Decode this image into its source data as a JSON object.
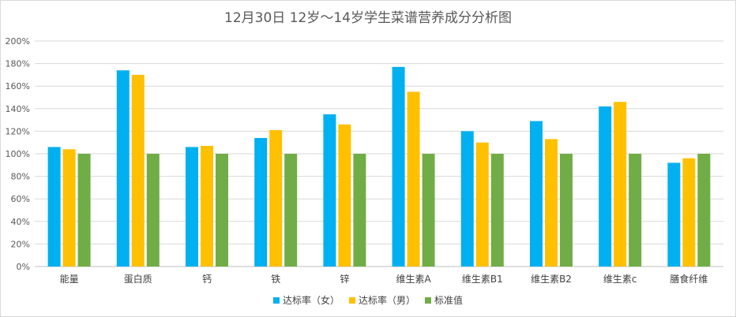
{
  "chart_data": {
    "type": "bar",
    "title": "12月30日 12岁～14岁学生菜谱营养成分分析图",
    "categories": [
      "能量",
      "蛋白质",
      "钙",
      "铁",
      "锌",
      "维生素A",
      "维生素B1",
      "维生素B2",
      "维生素c",
      "膳食纤维"
    ],
    "series": [
      {
        "name": "达标率（女）",
        "color": "#00B0F0",
        "values": [
          106,
          174,
          106,
          114,
          135,
          177,
          120,
          129,
          142,
          92
        ]
      },
      {
        "name": "达标率（男）",
        "color": "#FFC000",
        "values": [
          104,
          170,
          107,
          121,
          126,
          155,
          110,
          113,
          146,
          96
        ]
      },
      {
        "name": "标准值",
        "color": "#70AD47",
        "values": [
          100,
          100,
          100,
          100,
          100,
          100,
          100,
          100,
          100,
          100
        ]
      }
    ],
    "yticks": [
      "0%",
      "20%",
      "40%",
      "60%",
      "80%",
      "100%",
      "120%",
      "140%",
      "160%",
      "180%",
      "200%"
    ],
    "ylim": [
      0,
      200
    ],
    "grid": true,
    "legend_position": "bottom"
  }
}
